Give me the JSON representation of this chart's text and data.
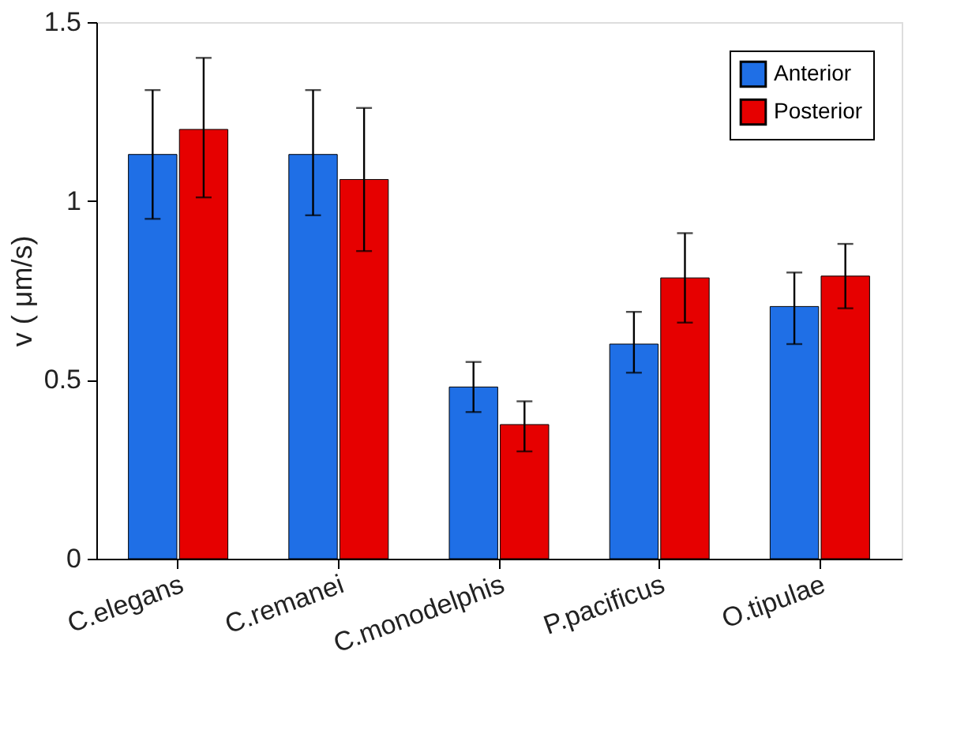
{
  "chart_data": {
    "type": "bar",
    "ylabel": "v ( μm/s)",
    "categories": [
      "C.elegans",
      "C.remanei",
      "C.monodelphis",
      "P.pacificus",
      "O.tipulae"
    ],
    "series": [
      {
        "name": "Anterior",
        "color": "#1f6fe6",
        "values": [
          1.13,
          1.13,
          0.48,
          0.6,
          0.705
        ],
        "errors": [
          [
            0.95,
            1.31
          ],
          [
            0.96,
            1.31
          ],
          [
            0.41,
            0.55
          ],
          [
            0.52,
            0.69
          ],
          [
            0.6,
            0.8
          ]
        ]
      },
      {
        "name": "Posterior",
        "color": "#e60000",
        "values": [
          1.2,
          1.06,
          0.375,
          0.785,
          0.79
        ],
        "errors": [
          [
            1.01,
            1.4
          ],
          [
            0.86,
            1.26
          ],
          [
            0.3,
            0.44
          ],
          [
            0.66,
            0.91
          ],
          [
            0.7,
            0.88
          ]
        ]
      }
    ],
    "ylim": [
      0,
      1.5
    ],
    "yticks": [
      0,
      0.5,
      1,
      1.5
    ],
    "grid": false,
    "legend": "top right"
  }
}
